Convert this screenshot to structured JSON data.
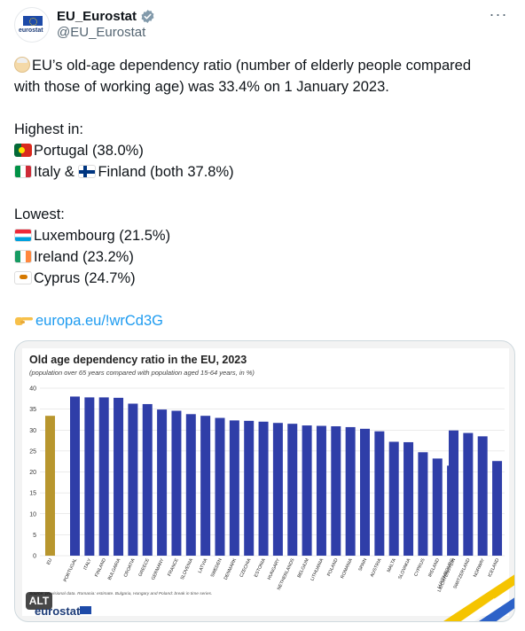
{
  "account": {
    "display_name": "EU_Eurostat",
    "handle": "@EU_Eurostat",
    "avatar_text": "eurostat",
    "verified": true,
    "more_label": "···"
  },
  "tweet": {
    "intro_line1": "EU’s old-age dependency ratio (number of elderly people compared",
    "intro_line2": "with those of working age) was 33.4% on 1 January 2023.",
    "highest_heading": "Highest in:",
    "highest": [
      {
        "flag": "portugal-flag",
        "text": "Portugal (38.0%)"
      },
      {
        "flag": "italy-flag",
        "text": "Italy &"
      },
      {
        "flag": "finland-flag",
        "text": "Finland (both 37.8%)"
      }
    ],
    "lowest_heading": "Lowest:",
    "lowest": [
      {
        "flag": "luxembourg-flag",
        "text": "Luxembourg (21.5%)"
      },
      {
        "flag": "ireland-flag",
        "text": "Ireland (23.2%)"
      },
      {
        "flag": "cyprus-flag",
        "text": "Cyprus (24.7%)"
      }
    ],
    "link_text": "europa.eu/!wrCd3G"
  },
  "media": {
    "alt_label": "ALT",
    "brand": "eurostat"
  },
  "chart_data": {
    "type": "bar",
    "title": "Old age dependency ratio in the EU, 2023",
    "subtitle": "(population over 65 years compared with population aged 15-64 years, in %)",
    "source_note": "Source: provisional data. Romania: estimate. Bulgaria, Hungary and Poland: break in time series.",
    "ylim": [
      0,
      40
    ],
    "yticks": [
      0,
      5,
      10,
      15,
      20,
      25,
      30,
      35,
      40
    ],
    "grid": true,
    "colors": {
      "eu": "#b8962e",
      "country": "#2f3ea8"
    },
    "groups": [
      {
        "categories": [
          "EU"
        ],
        "values": [
          33.4
        ],
        "color_key": "eu"
      },
      {
        "categories": [
          "PORTUGAL",
          "ITALY",
          "FINLAND",
          "BULGARIA",
          "CROATIA",
          "GREECE",
          "GERMANY",
          "FRANCE",
          "SLOVENIA",
          "LATVIA",
          "SWEDEN",
          "DENMARK",
          "CZECHIA",
          "ESTONIA",
          "HUNGARY",
          "NETHERLANDS",
          "BELGIUM",
          "LITHUANIA",
          "POLAND",
          "ROMANIA",
          "SPAIN",
          "AUSTRIA",
          "MALTA",
          "SLOVAKIA",
          "CYPRUS",
          "IRELAND",
          "LUXEMBOURG"
        ],
        "values": [
          38.0,
          37.8,
          37.8,
          37.7,
          36.3,
          36.2,
          34.9,
          34.6,
          33.8,
          33.4,
          32.9,
          32.3,
          32.2,
          32.0,
          31.7,
          31.5,
          31.1,
          31.0,
          30.9,
          30.7,
          30.3,
          29.7,
          27.2,
          27.1,
          24.7,
          23.2,
          21.5
        ],
        "color_key": "country"
      },
      {
        "categories": [
          "LIECHTENSTEIN",
          "SWITZERLAND",
          "NORWAY",
          "ICELAND"
        ],
        "values": [
          29.9,
          29.3,
          28.5,
          22.6
        ],
        "color_key": "country"
      }
    ]
  }
}
